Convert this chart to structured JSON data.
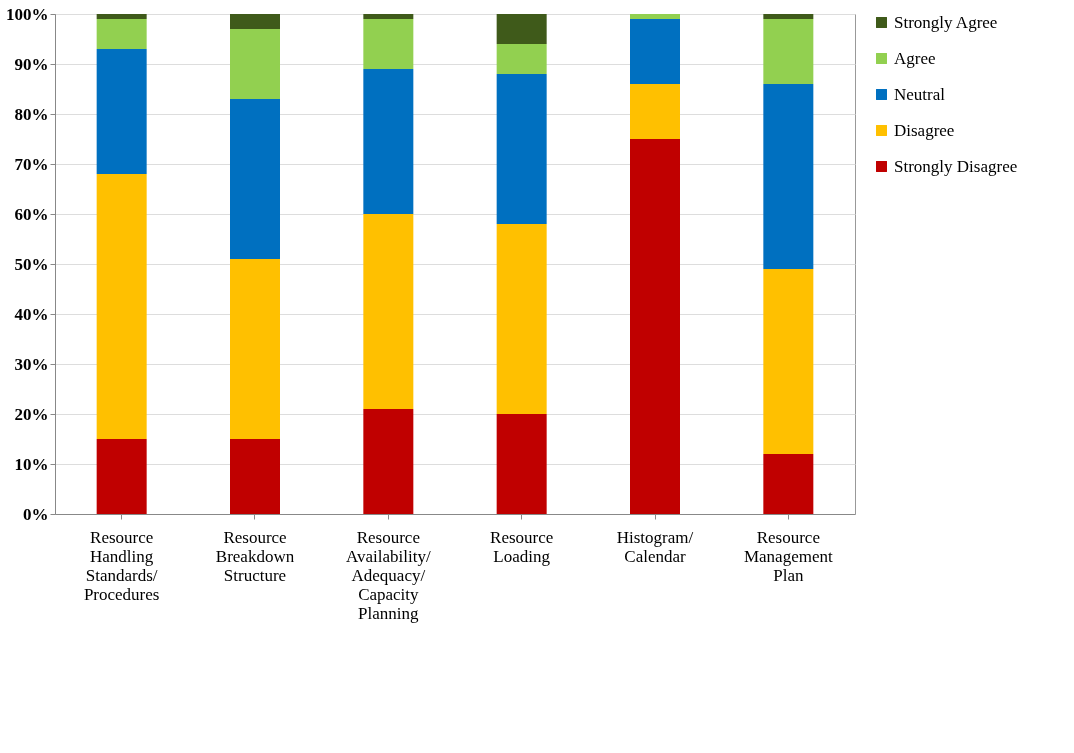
{
  "chart_data": {
    "type": "bar",
    "stacked": true,
    "categories": [
      "Resource Handling Standards/ Procedures",
      "Resource Breakdown Structure",
      "Resource Availability/ Adequacy/ Capacity Planning",
      "Resource Loading",
      "Histogram/ Calendar",
      "Resource Management Plan"
    ],
    "series": [
      {
        "name": "Strongly Disagree",
        "color": "#c00000",
        "values": [
          15,
          15,
          21,
          20,
          75,
          12
        ]
      },
      {
        "name": "Disagree",
        "color": "#ffc000",
        "values": [
          53,
          36,
          39,
          38,
          11,
          37
        ]
      },
      {
        "name": "Neutral",
        "color": "#0070c0",
        "values": [
          25,
          32,
          29,
          30,
          13,
          37
        ]
      },
      {
        "name": "Agree",
        "color": "#92d050",
        "values": [
          6,
          14,
          10,
          6,
          1,
          13
        ]
      },
      {
        "name": "Strongly Agree",
        "color": "#3f5a1a",
        "values": [
          1,
          3,
          1,
          6,
          0,
          1
        ]
      }
    ],
    "ylim": [
      0,
      100
    ],
    "yticks": [
      {
        "value": 0,
        "label": "0%"
      },
      {
        "value": 10,
        "label": "10%"
      },
      {
        "value": 20,
        "label": "20%"
      },
      {
        "value": 30,
        "label": "30%"
      },
      {
        "value": 40,
        "label": "40%"
      },
      {
        "value": 50,
        "label": "50%"
      },
      {
        "value": 60,
        "label": "60%"
      },
      {
        "value": 70,
        "label": "70%"
      },
      {
        "value": 80,
        "label": "80%"
      },
      {
        "value": 90,
        "label": "90%"
      },
      {
        "value": 100,
        "label": "100%"
      }
    ],
    "grid": "y",
    "legend": "right"
  }
}
